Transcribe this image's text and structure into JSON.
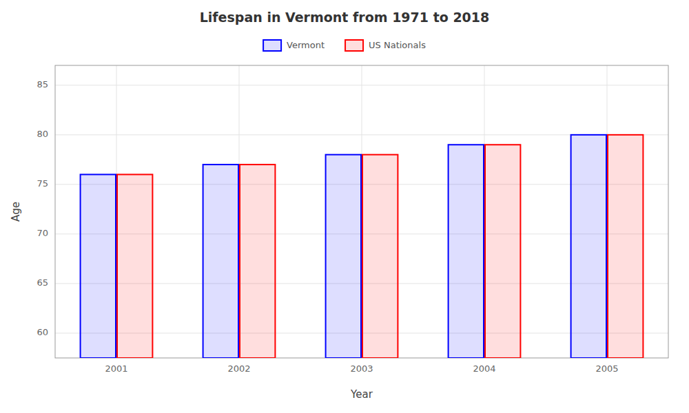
{
  "chart_data": {
    "type": "bar",
    "title": "Lifespan in Vermont from 1971 to 2018",
    "x_label": "Year",
    "y_label": "Age",
    "categories": [
      "2001",
      "2002",
      "2003",
      "2004",
      "2005"
    ],
    "series": [
      {
        "name": "Vermont",
        "color": "#0000ff",
        "values": [
          76,
          77,
          78,
          79,
          80
        ]
      },
      {
        "name": "US Nationals",
        "color": "#ff0000",
        "values": [
          76,
          77,
          78,
          79,
          80
        ]
      }
    ],
    "ylim": [
      57.5,
      87
    ],
    "yticks": [
      60,
      65,
      70,
      75,
      80,
      85
    ],
    "grid": true,
    "legend": "top"
  }
}
